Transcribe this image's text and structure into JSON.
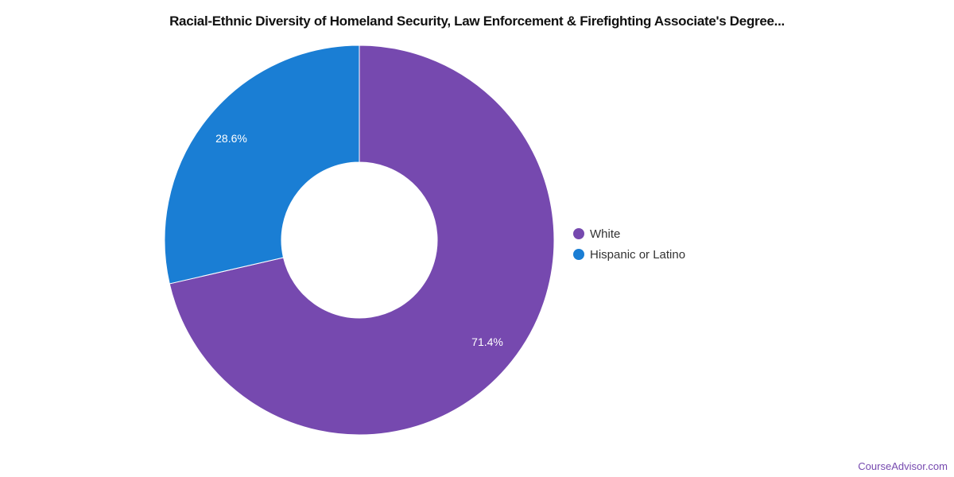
{
  "chart_data": {
    "type": "pie",
    "donut": true,
    "title": "Racial-Ethnic Diversity of Homeland Security, Law Enforcement & Firefighting Associate's Degree...",
    "categories": [
      "White",
      "Hispanic or Latino"
    ],
    "values": [
      71.4,
      28.6
    ],
    "data_labels": [
      "71.4%",
      "28.6%"
    ],
    "colors": [
      "#7649af",
      "#1a7ed4"
    ],
    "legend_placement": "right"
  },
  "watermark": "CourseAdvisor.com"
}
